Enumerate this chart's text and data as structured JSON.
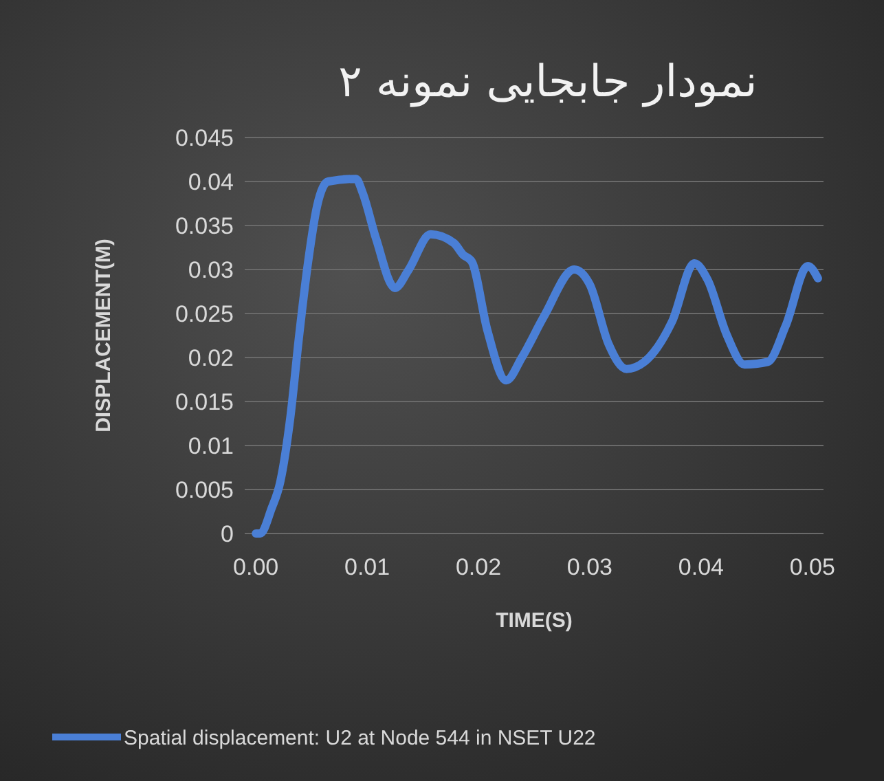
{
  "chart_data": {
    "type": "line",
    "title": "نمودار جابجایی نمونه ۲",
    "xlabel": "TIME(S)",
    "ylabel": "DISPLACEMENT(M)",
    "x": [
      0,
      0.0004,
      0.0014,
      0.0022,
      0.0031,
      0.0039,
      0.0047,
      0.0055,
      0.0065,
      0.009,
      0.0096,
      0.0108,
      0.0125,
      0.0137,
      0.0157,
      0.0178,
      0.0186,
      0.0194,
      0.0208,
      0.0225,
      0.0239,
      0.0259,
      0.0286,
      0.03,
      0.0317,
      0.0333,
      0.0349,
      0.0374,
      0.0394,
      0.0406,
      0.0423,
      0.0439,
      0.046,
      0.0476,
      0.0496,
      0.0505
    ],
    "series": [
      {
        "name": "Spatial displacement: U2 at Node 544 in NSET U22",
        "color": "#4a7fd6",
        "values": [
          0,
          0,
          0.0028,
          0.0059,
          0.0132,
          0.0226,
          0.0309,
          0.0372,
          0.04,
          0.0403,
          0.0387,
          0.0335,
          0.0279,
          0.0299,
          0.034,
          0.033,
          0.0317,
          0.0309,
          0.0231,
          0.0174,
          0.02,
          0.0247,
          0.03,
          0.0283,
          0.0215,
          0.0187,
          0.0195,
          0.0241,
          0.0307,
          0.0288,
          0.0226,
          0.0192,
          0.0195,
          0.0236,
          0.0304,
          0.029
        ]
      }
    ],
    "xlim": [
      -0.001,
      0.051
    ],
    "xticks": [
      {
        "value": 0,
        "label": "0.00"
      },
      0.01,
      0.02,
      0.03,
      0.04,
      0.05
    ],
    "ylim": [
      0,
      0.045
    ],
    "yticks": [
      0,
      0.005,
      0.01,
      0.015,
      0.02,
      0.025,
      0.03,
      0.035,
      0.04,
      0.045
    ],
    "grid": "y",
    "legend": "bottom",
    "marker": "none",
    "line_style": "solid"
  }
}
